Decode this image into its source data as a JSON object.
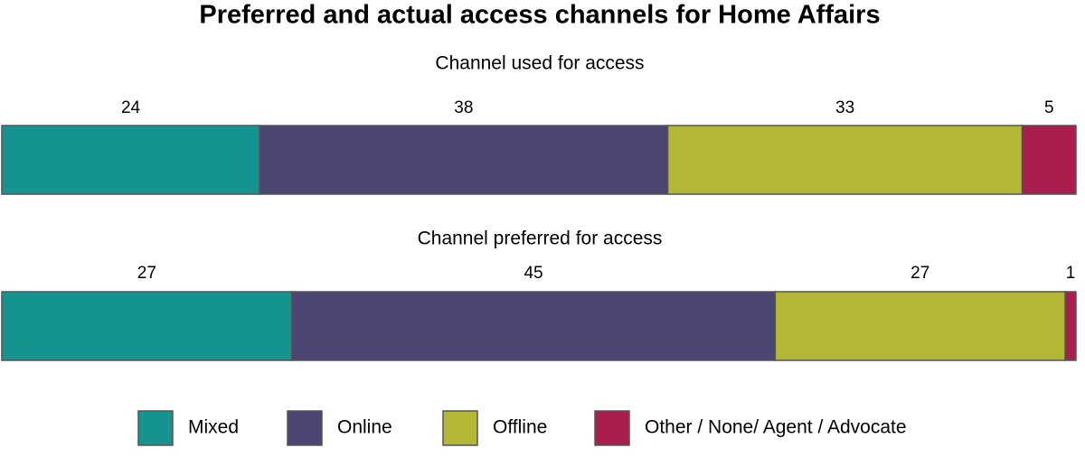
{
  "chart_data": {
    "type": "stacked-bar",
    "title": "Preferred and actual access channels for Home Affairs",
    "categories": [
      "Channel used for access",
      "Channel preferred for access"
    ],
    "series": [
      {
        "name": "Mixed",
        "color": "#14938f",
        "values": [
          24,
          27
        ]
      },
      {
        "name": "Online",
        "color": "#4a4572",
        "values": [
          38,
          45
        ]
      },
      {
        "name": "Offline",
        "color": "#b2b836",
        "values": [
          33,
          27
        ]
      },
      {
        "name": "Other / None/ Agent / Advocate",
        "color": "#a91e4e",
        "values": [
          5,
          1
        ]
      }
    ]
  }
}
